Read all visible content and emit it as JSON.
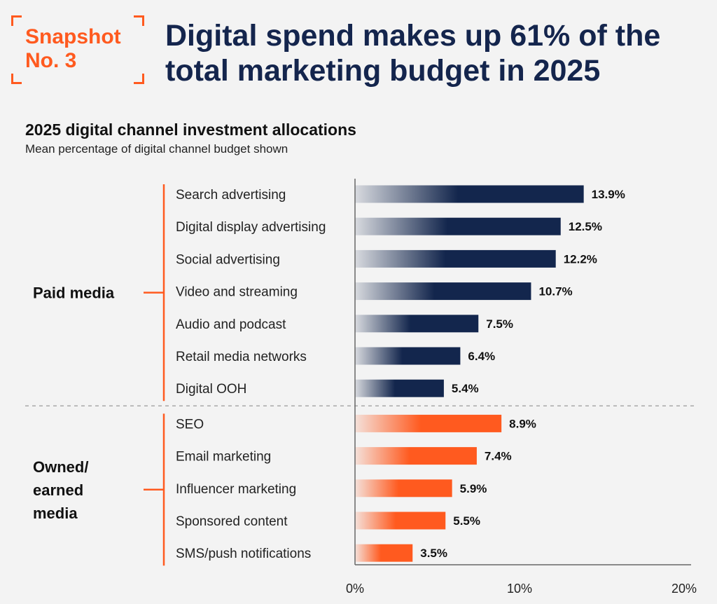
{
  "snapshot": {
    "line1": "Snapshot",
    "line2": "No. 3"
  },
  "headline": "Digital spend makes up 61% of the total marketing budget in 2025",
  "colors": {
    "accent": "#ff5a1f",
    "navy": "#14254d",
    "paid_bar": "#13264d",
    "owned_bar": "#ff5a1f"
  },
  "chart_data": {
    "type": "bar",
    "orientation": "horizontal",
    "title": "2025 digital channel investment allocations",
    "subtitle": "Mean percentage of digital channel budget shown",
    "xlim": [
      0,
      20
    ],
    "ticks": [
      {
        "value": 0,
        "label": "0%"
      },
      {
        "value": 10,
        "label": "10%"
      },
      {
        "value": 20,
        "label": "20%"
      }
    ],
    "groups": [
      {
        "label_lines": [
          "Paid media"
        ],
        "color": "#13264d",
        "items": [
          {
            "category": "Search advertising",
            "value": 13.9,
            "label": "13.9%"
          },
          {
            "category": "Digital display advertising",
            "value": 12.5,
            "label": "12.5%"
          },
          {
            "category": "Social advertising",
            "value": 12.2,
            "label": "12.2%"
          },
          {
            "category": "Video and streaming",
            "value": 10.7,
            "label": "10.7%"
          },
          {
            "category": "Audio and podcast",
            "value": 7.5,
            "label": "7.5%"
          },
          {
            "category": "Retail media networks",
            "value": 6.4,
            "label": "6.4%"
          },
          {
            "category": "Digital OOH",
            "value": 5.4,
            "label": "5.4%"
          }
        ]
      },
      {
        "label_lines": [
          "Owned/",
          "earned",
          "media"
        ],
        "color": "#ff5a1f",
        "items": [
          {
            "category": "SEO",
            "value": 8.9,
            "label": "8.9%"
          },
          {
            "category": "Email marketing",
            "value": 7.4,
            "label": "7.4%"
          },
          {
            "category": "Influencer marketing",
            "value": 5.9,
            "label": "5.9%"
          },
          {
            "category": "Sponsored content",
            "value": 5.5,
            "label": "5.5%"
          },
          {
            "category": "SMS/push notifications",
            "value": 3.5,
            "label": "3.5%"
          }
        ]
      }
    ]
  }
}
